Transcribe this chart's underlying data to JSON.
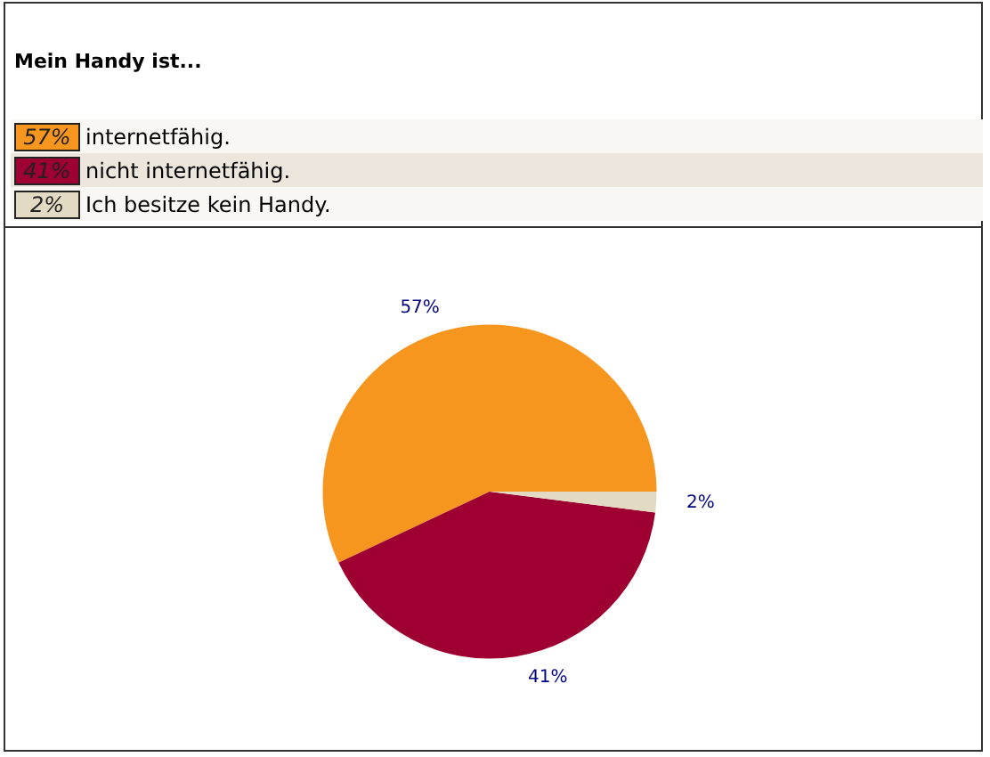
{
  "chart_data": {
    "type": "pie",
    "title": "Mein Handy ist...",
    "categories": [
      "internetfähig.",
      "nicht internetfähig.",
      "Ich besitze kein Handy."
    ],
    "values": [
      57,
      41,
      2
    ],
    "colors": [
      "#f7961e",
      "#9e0031",
      "#e3dac3"
    ],
    "value_labels": [
      "57%",
      "41%",
      "2%"
    ],
    "legend": "top left"
  }
}
